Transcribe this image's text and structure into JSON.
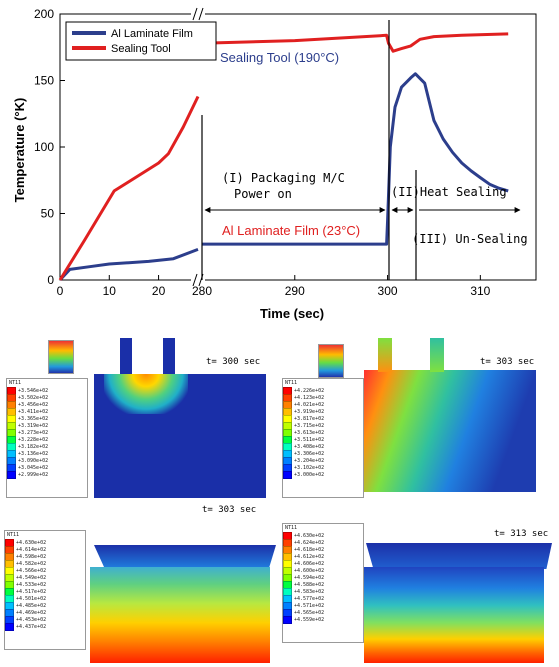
{
  "chart_data": {
    "type": "line",
    "ylabel": "Temperature (°K)",
    "xlabel": "Time (sec)",
    "ylim": [
      0,
      200
    ],
    "y_ticks": [
      "0",
      "50",
      "100",
      "150",
      "200"
    ],
    "x_ticks_left": [
      "0",
      "10",
      "20"
    ],
    "x_ticks_right": [
      "280",
      "290",
      "300",
      "310"
    ],
    "legend": {
      "placement": "top-left",
      "entries": [
        "Al Laminate Film",
        "Sealing Tool"
      ]
    },
    "series": [
      {
        "name": "Al Laminate Film",
        "color": "#2c3e8c",
        "segments": [
          {
            "x_axis": "left",
            "points": [
              [
                0,
                0
              ],
              [
                2,
                8
              ],
              [
                6,
                10
              ],
              [
                10,
                12
              ],
              [
                18,
                14
              ],
              [
                23,
                16
              ],
              [
                28,
                23
              ]
            ]
          },
          {
            "x_axis": "right",
            "points": [
              [
                280,
                27
              ],
              [
                290,
                27
              ],
              [
                299.9,
                27
              ],
              [
                300,
                45
              ],
              [
                300.3,
                100
              ],
              [
                300.8,
                130
              ],
              [
                301.5,
                145
              ],
              [
                302.5,
                152
              ],
              [
                303,
                155
              ],
              [
                304,
                148
              ],
              [
                305,
                120
              ],
              [
                306,
                106
              ],
              [
                307,
                96
              ],
              [
                308,
                88
              ],
              [
                309,
                82
              ],
              [
                310,
                77
              ],
              [
                311,
                72
              ],
              [
                312,
                69
              ],
              [
                313,
                67
              ]
            ]
          }
        ]
      },
      {
        "name": "Sealing Tool",
        "color": "#e02020",
        "segments": [
          {
            "x_axis": "left",
            "points": [
              [
                0,
                0
              ],
              [
                5,
                30
              ],
              [
                11,
                67
              ],
              [
                20,
                88
              ],
              [
                22,
                95
              ],
              [
                25,
                115
              ],
              [
                28,
                138
              ]
            ]
          },
          {
            "x_axis": "right",
            "points": [
              [
                280,
                178
              ],
              [
                290,
                180
              ],
              [
                299.9,
                184
              ],
              [
                300.1,
                178
              ],
              [
                300.6,
                172
              ],
              [
                301.5,
                174
              ],
              [
                302.5,
                176
              ],
              [
                303.5,
                181
              ],
              [
                305,
                183
              ],
              [
                308,
                184
              ],
              [
                313,
                185
              ]
            ]
          }
        ]
      }
    ],
    "annotations": [
      "Sealing Tool (190°C)",
      "Al Laminate Film (23°C)",
      "(I) Packaging M/C",
      "Power on",
      "(II)Heat Sealing",
      "(III) Un-Sealing"
    ]
  },
  "panels": [
    {
      "time_label": "t= 300 sec",
      "legend_title": "NT11",
      "legend_values": [
        "+3.546e+02",
        "+3.502e+02",
        "+3.456e+02",
        "+3.411e+02",
        "+3.365e+02",
        "+3.319e+02",
        "+3.273e+02",
        "+3.228e+02",
        "+3.182e+02",
        "+3.136e+02",
        "+3.090e+02",
        "+3.045e+02",
        "+2.999e+02"
      ]
    },
    {
      "time_label": "t= 303 sec",
      "legend_title": "NT11",
      "legend_values": [
        "+4.226e+02",
        "+4.123e+02",
        "+4.021e+02",
        "+3.919e+02",
        "+3.817e+02",
        "+3.715e+02",
        "+3.613e+02",
        "+3.511e+02",
        "+3.408e+02",
        "+3.306e+02",
        "+3.204e+02",
        "+3.102e+02",
        "+3.000e+02"
      ]
    },
    {
      "time_label": "t= 303 sec",
      "legend_title": "NT11",
      "legend_values": [
        "+4.630e+02",
        "+4.614e+02",
        "+4.598e+02",
        "+4.582e+02",
        "+4.566e+02",
        "+4.549e+02",
        "+4.533e+02",
        "+4.517e+02",
        "+4.501e+02",
        "+4.485e+02",
        "+4.469e+02",
        "+4.453e+02",
        "+4.437e+02"
      ]
    },
    {
      "time_label": "t= 313 sec",
      "legend_title": "NT11",
      "legend_values": [
        "+4.630e+02",
        "+4.624e+02",
        "+4.618e+02",
        "+4.612e+02",
        "+4.606e+02",
        "+4.600e+02",
        "+4.594e+02",
        "+4.588e+02",
        "+4.583e+02",
        "+4.577e+02",
        "+4.571e+02",
        "+4.565e+02",
        "+4.559e+02"
      ]
    }
  ],
  "legend_colors": [
    "#ff0000",
    "#ff4000",
    "#ff8000",
    "#ffbf00",
    "#ffff00",
    "#bfff00",
    "#80ff00",
    "#00ff40",
    "#00ffbf",
    "#00bfff",
    "#0080ff",
    "#0040ff",
    "#0000ff"
  ]
}
